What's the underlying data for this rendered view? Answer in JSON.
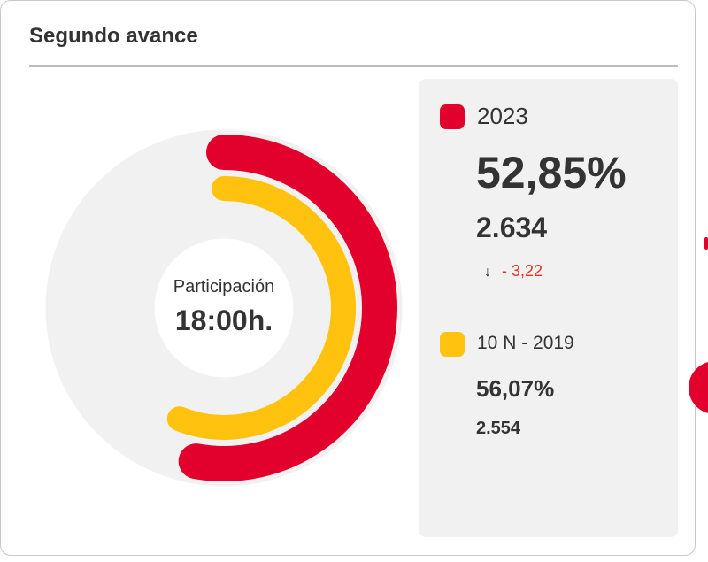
{
  "card": {
    "title": "Segundo avance"
  },
  "center": {
    "label": "Participación",
    "time": "18:00h."
  },
  "legend": {
    "current": {
      "name": "2023",
      "percent": "52,85%",
      "count": "2.634",
      "delta": "- 3,22",
      "delta_icon": "arrow-down-icon",
      "color": "#e2002d"
    },
    "previous": {
      "name": "10 N - 2019",
      "percent": "56,07%",
      "count": "2.554",
      "color": "#ffc20e"
    }
  },
  "chart_data": {
    "type": "donut",
    "unit": "%",
    "max": 100,
    "track_color": "#f1f1f1",
    "series": [
      {
        "name": "2023",
        "value": 52.85,
        "color": "#e2002d"
      },
      {
        "name": "10 N - 2019",
        "value": 56.07,
        "color": "#ffc20e"
      }
    ]
  }
}
